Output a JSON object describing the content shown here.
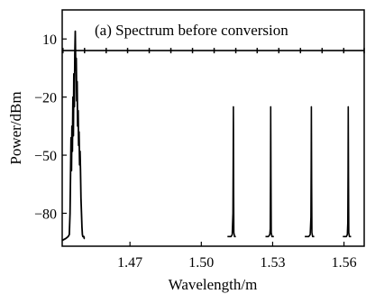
{
  "chart_data": {
    "type": "line",
    "title": "(a) Spectrum before conversion",
    "xlabel": "Wavelength/m",
    "ylabel": "Power/dBm",
    "xlim": [
      1.4415,
      1.5685
    ],
    "ylim": [
      -97,
      25
    ],
    "x_ticks": [
      1.47,
      1.5,
      1.53,
      1.56
    ],
    "x_tick_labels": [
      "1.47",
      "1.50",
      "1.53",
      "1.56"
    ],
    "y_ticks": [
      10,
      -20,
      -50,
      -80
    ],
    "y_tick_labels": [
      "10",
      "−20",
      "−50",
      "−80"
    ],
    "grid": false,
    "legend": "none",
    "colors": {
      "line": "#000000",
      "background": "#ffffff"
    },
    "series": [
      {
        "x": [
          1.4415,
          1.443,
          1.444,
          1.4445,
          1.4448,
          1.445,
          1.4452,
          1.4454,
          1.4456,
          1.4458,
          1.446,
          1.4462,
          1.4464,
          1.4466,
          1.4468,
          1.447,
          1.4472,
          1.4474,
          1.4476,
          1.4478,
          1.448,
          1.4482,
          1.4484,
          1.4486,
          1.4488,
          1.449,
          1.4492,
          1.4494,
          1.4496,
          1.4498,
          1.45,
          1.4502,
          1.4504,
          1.4506,
          1.4508,
          1.451
        ],
        "values": [
          -94,
          -93,
          -92,
          -91,
          -80,
          -62,
          -41,
          -58,
          -35,
          -48,
          -20,
          -40,
          -8,
          -25,
          2,
          14,
          -6,
          0,
          -22,
          -12,
          -35,
          -27,
          -45,
          -38,
          -55,
          -48,
          -58,
          -72,
          -80,
          -87,
          -91,
          -92,
          -92,
          -92,
          -93,
          -93
        ]
      },
      {
        "x": [
          1.511,
          1.5125,
          1.513,
          1.5133,
          1.5134,
          1.5135,
          1.5136,
          1.5137,
          1.514,
          1.5145
        ],
        "values": [
          -92,
          -92,
          -91,
          -80,
          -50,
          -25,
          -70,
          -90,
          -92,
          -92
        ]
      },
      {
        "x": [
          1.527,
          1.5282,
          1.5288,
          1.529,
          1.5291,
          1.5292,
          1.5293,
          1.5294,
          1.5297,
          1.5305
        ],
        "values": [
          -92,
          -92,
          -91,
          -88,
          -60,
          -25,
          -62,
          -90,
          -92,
          -92
        ]
      },
      {
        "x": [
          1.5435,
          1.5452,
          1.5458,
          1.5461,
          1.5462,
          1.5463,
          1.5464,
          1.5465,
          1.5468,
          1.5475
        ],
        "values": [
          -92,
          -92,
          -91,
          -82,
          -55,
          -25,
          -65,
          -90,
          -92,
          -92
        ]
      },
      {
        "x": [
          1.5595,
          1.561,
          1.5614,
          1.5616,
          1.5617,
          1.5618,
          1.5619,
          1.562,
          1.5623,
          1.563
        ],
        "values": [
          -92,
          -92,
          -91,
          -85,
          -58,
          -25,
          -62,
          -90,
          -92,
          -92
        ]
      }
    ],
    "reference_line": {
      "y": 4,
      "marker_x": [
        1.4418,
        1.4509,
        1.46,
        1.469,
        1.4781,
        1.4872,
        1.4963,
        1.5054,
        1.5145,
        1.5235,
        1.5326,
        1.5417,
        1.5508,
        1.5599,
        1.5685
      ]
    }
  }
}
